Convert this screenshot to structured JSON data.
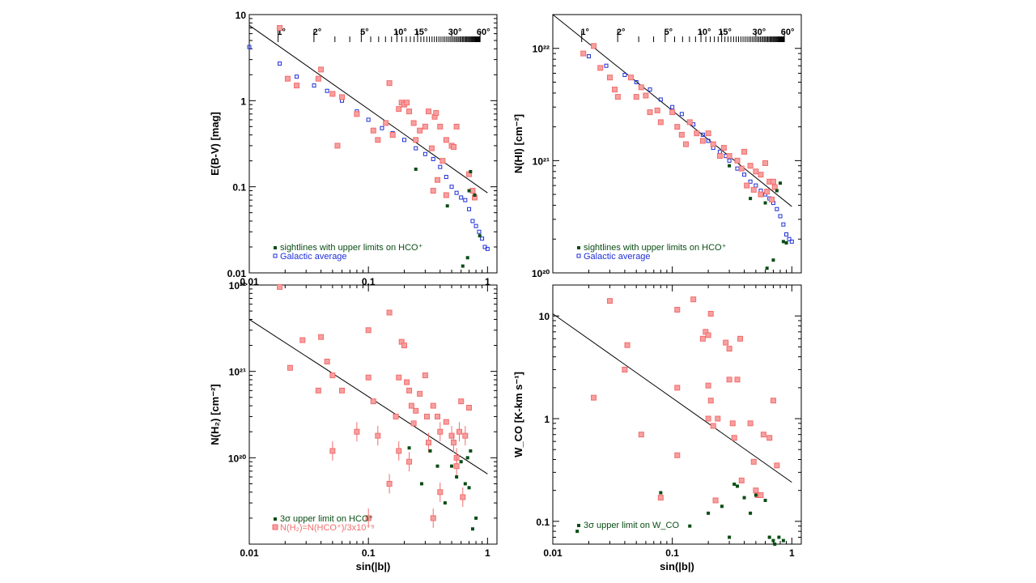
{
  "x_axis_label": "sin(|b|)",
  "colors": {
    "measured": "#f26d6d",
    "measured_fill": "#f7a0a0",
    "upper_limit": "#0a4d14",
    "galactic": "#1f2fd8",
    "fit": "#000000"
  },
  "chart_data": [
    {
      "id": "ebv",
      "type": "scatter",
      "ylabel": "E(B-V) [mag]",
      "xscale": "log",
      "yscale": "log",
      "xlim": [
        0.01,
        1.2
      ],
      "ylim": [
        0.01,
        10
      ],
      "x_ticks": [
        {
          "v": 0.01,
          "label": "0.01"
        },
        {
          "v": 0.1,
          "label": "0.1"
        },
        {
          "v": 1,
          "label": "1"
        }
      ],
      "y_ticks": [
        {
          "v": 0.01,
          "label": "0.01"
        },
        {
          "v": 0.1,
          "label": "0.1"
        },
        {
          "v": 1,
          "label": "1"
        },
        {
          "v": 10,
          "label": "10"
        }
      ],
      "top_axis_labels": [
        "1°",
        "2°",
        "5°",
        "10°",
        "15°",
        "30°",
        "60°"
      ],
      "top_axis_deg": [
        1,
        2,
        5,
        10,
        15,
        30,
        60
      ],
      "fit": {
        "x": [
          0.01,
          1
        ],
        "y": [
          7.5,
          0.085
        ]
      },
      "legend": [
        "sightlines with upper limits on HCO⁺",
        "Galactic average"
      ],
      "measured": [
        [
          0.018,
          7.0
        ],
        [
          0.021,
          1.8
        ],
        [
          0.025,
          1.5
        ],
        [
          0.038,
          1.8
        ],
        [
          0.04,
          2.3
        ],
        [
          0.05,
          1.2
        ],
        [
          0.055,
          0.3
        ],
        [
          0.06,
          1.1
        ],
        [
          0.08,
          0.7
        ],
        [
          0.11,
          0.45
        ],
        [
          0.12,
          0.35
        ],
        [
          0.14,
          0.55
        ],
        [
          0.15,
          1.6
        ],
        [
          0.16,
          0.4
        ],
        [
          0.18,
          0.8
        ],
        [
          0.19,
          0.95
        ],
        [
          0.2,
          0.9
        ],
        [
          0.21,
          0.95
        ],
        [
          0.22,
          0.75
        ],
        [
          0.24,
          0.55
        ],
        [
          0.25,
          0.35
        ],
        [
          0.27,
          0.45
        ],
        [
          0.3,
          0.5
        ],
        [
          0.32,
          0.75
        ],
        [
          0.34,
          0.28
        ],
        [
          0.36,
          0.65
        ],
        [
          0.37,
          0.72
        ],
        [
          0.4,
          0.5
        ],
        [
          0.42,
          0.2
        ],
        [
          0.45,
          0.35
        ],
        [
          0.5,
          0.3
        ],
        [
          0.52,
          0.29
        ],
        [
          0.55,
          0.5
        ],
        [
          0.35,
          0.09
        ],
        [
          0.38,
          0.12
        ],
        [
          0.45,
          0.08
        ],
        [
          0.7,
          0.14
        ],
        [
          0.75,
          0.09
        ],
        [
          0.78,
          0.075
        ]
      ],
      "upper_limits": [
        [
          0.25,
          0.16
        ],
        [
          0.46,
          0.06
        ],
        [
          0.62,
          0.012
        ],
        [
          0.68,
          0.015
        ],
        [
          0.7,
          0.09
        ],
        [
          0.78,
          0.08
        ],
        [
          0.72,
          0.15
        ],
        [
          0.86,
          0.027
        ]
      ],
      "galactic": [
        [
          0.01,
          4.2
        ],
        [
          0.018,
          2.7
        ],
        [
          0.025,
          1.9
        ],
        [
          0.035,
          1.5
        ],
        [
          0.045,
          1.3
        ],
        [
          0.06,
          1.0
        ],
        [
          0.08,
          0.75
        ],
        [
          0.1,
          0.6
        ],
        [
          0.13,
          0.48
        ],
        [
          0.16,
          0.42
        ],
        [
          0.2,
          0.35
        ],
        [
          0.25,
          0.28
        ],
        [
          0.3,
          0.24
        ],
        [
          0.35,
          0.21
        ],
        [
          0.4,
          0.17
        ],
        [
          0.45,
          0.13
        ],
        [
          0.5,
          0.1
        ],
        [
          0.55,
          0.085
        ],
        [
          0.6,
          0.075
        ],
        [
          0.65,
          0.07
        ],
        [
          0.7,
          0.055
        ],
        [
          0.75,
          0.04
        ],
        [
          0.8,
          0.035
        ],
        [
          0.85,
          0.03
        ],
        [
          0.9,
          0.025
        ],
        [
          0.95,
          0.02
        ],
        [
          1.0,
          0.019
        ]
      ]
    },
    {
      "id": "nhi",
      "type": "scatter",
      "ylabel": "N(HI) [cm⁻²]",
      "xscale": "log",
      "yscale": "log",
      "xlim": [
        0.01,
        1.2
      ],
      "ylim": [
        1e+20,
        2e+22
      ],
      "x_ticks": [],
      "y_ticks": [
        {
          "v": 1e+20,
          "label": "10²⁰"
        },
        {
          "v": 1e+21,
          "label": "10²¹"
        },
        {
          "v": 1e+22,
          "label": "10²²"
        }
      ],
      "top_axis_labels": [
        "1°",
        "2°",
        "5°",
        "10°",
        "15°",
        "30°",
        "60°"
      ],
      "top_axis_deg": [
        1,
        2,
        5,
        10,
        15,
        30,
        60
      ],
      "fit": {
        "x": [
          0.01,
          1
        ],
        "y": [
          2e+22,
          3.9e+20
        ]
      },
      "legend": [
        "sightlines with upper limits on HCO⁺",
        "Galactic average"
      ],
      "measured": [
        [
          0.018,
          9e+21
        ],
        [
          0.022,
          1.05e+22
        ],
        [
          0.025,
          6.7e+21
        ],
        [
          0.03,
          5.5e+21
        ],
        [
          0.033,
          4.3e+21
        ],
        [
          0.035,
          3.7e+21
        ],
        [
          0.045,
          5.5e+21
        ],
        [
          0.05,
          3.7e+21
        ],
        [
          0.055,
          4.5e+21
        ],
        [
          0.06,
          3.8e+21
        ],
        [
          0.065,
          2.7e+21
        ],
        [
          0.075,
          2.8e+21
        ],
        [
          0.08,
          2.2e+21
        ],
        [
          0.1,
          2.7e+21
        ],
        [
          0.11,
          2e+21
        ],
        [
          0.12,
          1.7e+21
        ],
        [
          0.13,
          1.4e+21
        ],
        [
          0.14,
          2.2e+21
        ],
        [
          0.16,
          1.75e+21
        ],
        [
          0.18,
          1.5e+21
        ],
        [
          0.2,
          1.75e+21
        ],
        [
          0.22,
          1.4e+21
        ],
        [
          0.25,
          1.1e+21
        ],
        [
          0.27,
          1.3e+21
        ],
        [
          0.3,
          1.1e+21
        ],
        [
          0.35,
          1e+21
        ],
        [
          0.38,
          8.5e+20
        ],
        [
          0.4,
          1.2e+21
        ],
        [
          0.45,
          9e+20
        ],
        [
          0.5,
          8e+20
        ],
        [
          0.55,
          7.5e+20
        ],
        [
          0.6,
          9.5e+20
        ],
        [
          0.65,
          6.5e+20
        ],
        [
          0.7,
          6.5e+20
        ],
        [
          0.42,
          6e+20
        ],
        [
          0.48,
          5.5e+20
        ],
        [
          0.55,
          5e+20
        ],
        [
          0.62,
          5.3e+20
        ],
        [
          0.68,
          4.5e+20
        ],
        [
          0.72,
          5.8e+20
        ]
      ],
      "upper_limits": [
        [
          0.3,
          9e+20
        ],
        [
          0.45,
          4.6e+20
        ],
        [
          0.6,
          4.2e+20
        ],
        [
          0.62,
          1.1e+20
        ],
        [
          0.7,
          1.3e+20
        ],
        [
          0.75,
          5.4e+20
        ],
        [
          0.8,
          6.3e+20
        ],
        [
          0.85,
          1.9e+20
        ],
        [
          0.9,
          1.85e+20
        ]
      ],
      "galactic": [
        [
          0.02,
          8.5e+21
        ],
        [
          0.028,
          7e+21
        ],
        [
          0.04,
          5.8e+21
        ],
        [
          0.05,
          5e+21
        ],
        [
          0.065,
          4.3e+21
        ],
        [
          0.08,
          3.5e+21
        ],
        [
          0.1,
          3e+21
        ],
        [
          0.12,
          2.6e+21
        ],
        [
          0.15,
          2.1e+21
        ],
        [
          0.18,
          1.7e+21
        ],
        [
          0.2,
          1.5e+21
        ],
        [
          0.22,
          1.3e+21
        ],
        [
          0.25,
          1.2e+21
        ],
        [
          0.28,
          1.1e+21
        ],
        [
          0.3,
          1e+21
        ],
        [
          0.35,
          8.5e+20
        ],
        [
          0.4,
          7.5e+20
        ],
        [
          0.45,
          6.5e+20
        ],
        [
          0.5,
          6e+20
        ],
        [
          0.55,
          5.4e+20
        ],
        [
          0.6,
          5e+20
        ],
        [
          0.65,
          4.6e+20
        ],
        [
          0.7,
          4.2e+20
        ],
        [
          0.75,
          3.7e+20
        ],
        [
          0.8,
          3.2e+20
        ],
        [
          0.85,
          2.7e+20
        ],
        [
          0.9,
          2.2e+20
        ],
        [
          0.95,
          2e+20
        ],
        [
          1.0,
          1.9e+20
        ]
      ]
    },
    {
      "id": "nh2",
      "type": "scatter",
      "ylabel": "N(H₂) [cm⁻²]",
      "xscale": "log",
      "yscale": "log",
      "xlim": [
        0.01,
        1.2
      ],
      "ylim": [
        1e+19,
        1e+22
      ],
      "x_ticks": [
        {
          "v": 0.01,
          "label": "0.01"
        },
        {
          "v": 0.1,
          "label": "0.1"
        },
        {
          "v": 1,
          "label": "1"
        }
      ],
      "y_ticks": [
        {
          "v": 1e+20,
          "label": "10²⁰"
        },
        {
          "v": 1e+21,
          "label": "10²¹"
        },
        {
          "v": 1e+22,
          "label": "10²²"
        }
      ],
      "fit": {
        "x": [
          0.01,
          1
        ],
        "y": [
          4e+21,
          6.5e+19
        ]
      },
      "legend": [
        "3σ upper limit on HCO⁺",
        "N(H₂)=N(HCO⁺)/3x10⁻⁹"
      ],
      "measured": [
        [
          0.018,
          9.5e+21
        ],
        [
          0.022,
          1.1e+21
        ],
        [
          0.028,
          2.3e+21
        ],
        [
          0.04,
          2.5e+21
        ],
        [
          0.045,
          1.3e+21
        ],
        [
          0.05,
          9e+20
        ],
        [
          0.038,
          6e+20
        ],
        [
          0.06,
          6e+20
        ],
        [
          0.05,
          1.2e+20
        ],
        [
          0.08,
          2e+20
        ],
        [
          0.1,
          3e+21
        ],
        [
          0.1,
          8.5e+20
        ],
        [
          0.11,
          4.5e+20
        ],
        [
          0.12,
          1.8e+20
        ],
        [
          0.15,
          4.8e+21
        ],
        [
          0.17,
          3e+20
        ],
        [
          0.18,
          8.5e+20
        ],
        [
          0.19,
          2.2e+21
        ],
        [
          0.2,
          2e+21
        ],
        [
          0.21,
          7.5e+20
        ],
        [
          0.22,
          6e+20
        ],
        [
          0.23,
          4e+20
        ],
        [
          0.24,
          2.5e+20
        ],
        [
          0.25,
          3.5e+20
        ],
        [
          0.27,
          5.5e+20
        ],
        [
          0.3,
          9e+20
        ],
        [
          0.31,
          3e+20
        ],
        [
          0.32,
          1.5e+20
        ],
        [
          0.35,
          4e+20
        ],
        [
          0.38,
          3e+20
        ],
        [
          0.4,
          2e+20
        ],
        [
          0.45,
          2.6e+20
        ],
        [
          0.5,
          1.8e+20
        ],
        [
          0.52,
          1.5e+20
        ],
        [
          0.55,
          1e+20
        ],
        [
          0.58,
          2e+20
        ],
        [
          0.6,
          4.5e+20
        ],
        [
          0.65,
          1.8e+20
        ],
        [
          0.7,
          3.8e+20
        ],
        [
          0.15,
          5e+19
        ],
        [
          0.1,
          2e+19
        ],
        [
          0.35,
          2e+19
        ],
        [
          0.4,
          4e+19
        ],
        [
          0.55,
          8e+19
        ],
        [
          0.62,
          3.5e+19
        ],
        [
          0.22,
          9e+19
        ],
        [
          0.18,
          1.2e+20
        ]
      ],
      "upper_limits": [
        [
          0.22,
          1.3e+20
        ],
        [
          0.28,
          5e+19
        ],
        [
          0.33,
          1.2e+20
        ],
        [
          0.38,
          8e+19
        ],
        [
          0.44,
          3e+19
        ],
        [
          0.5,
          8e+19
        ],
        [
          0.55,
          6e+19
        ],
        [
          0.6,
          9e+19
        ],
        [
          0.65,
          5e+19
        ],
        [
          0.7,
          4.5e+19
        ],
        [
          0.72,
          1.2e+20
        ],
        [
          0.68,
          1e+20
        ],
        [
          0.75,
          1.5e+19
        ],
        [
          0.8,
          2e+19
        ]
      ],
      "galactic": []
    },
    {
      "id": "wco",
      "type": "scatter",
      "ylabel": "W_CO [K-km s⁻¹]",
      "xscale": "log",
      "yscale": "log",
      "xlim": [
        0.01,
        1.2
      ],
      "ylim": [
        0.06,
        20
      ],
      "x_ticks": [
        {
          "v": 0.01,
          "label": "0.01"
        },
        {
          "v": 0.1,
          "label": "0.1"
        },
        {
          "v": 1,
          "label": "1"
        }
      ],
      "y_ticks": [
        {
          "v": 0.1,
          "label": "0.1"
        },
        {
          "v": 1,
          "label": "1"
        },
        {
          "v": 10,
          "label": "10"
        }
      ],
      "fit": {
        "x": [
          0.01,
          1
        ],
        "y": [
          10.5,
          0.24
        ]
      },
      "legend": [
        "3σ upper limit on W_CO"
      ],
      "measured": [
        [
          0.022,
          1.6
        ],
        [
          0.03,
          14.0
        ],
        [
          0.04,
          3.0
        ],
        [
          0.042,
          5.2
        ],
        [
          0.055,
          0.7
        ],
        [
          0.08,
          0.17
        ],
        [
          0.11,
          11.5
        ],
        [
          0.11,
          2.0
        ],
        [
          0.11,
          0.44
        ],
        [
          0.15,
          14.5
        ],
        [
          0.18,
          6.0
        ],
        [
          0.19,
          7.0
        ],
        [
          0.2,
          6.5
        ],
        [
          0.2,
          2.1
        ],
        [
          0.2,
          1.0
        ],
        [
          0.21,
          10.5
        ],
        [
          0.21,
          1.5
        ],
        [
          0.22,
          0.85
        ],
        [
          0.23,
          0.16
        ],
        [
          0.24,
          1.0
        ],
        [
          0.28,
          5.5
        ],
        [
          0.3,
          4.8
        ],
        [
          0.3,
          2.4
        ],
        [
          0.32,
          0.9
        ],
        [
          0.33,
          0.65
        ],
        [
          0.35,
          2.4
        ],
        [
          0.37,
          6.0
        ],
        [
          0.38,
          0.25
        ],
        [
          0.45,
          0.9
        ],
        [
          0.48,
          0.38
        ],
        [
          0.5,
          0.2
        ],
        [
          0.52,
          0.18
        ],
        [
          0.55,
          0.18
        ],
        [
          0.58,
          0.7
        ],
        [
          0.65,
          0.65
        ],
        [
          0.7,
          1.5
        ],
        [
          0.75,
          0.35
        ]
      ],
      "upper_limits": [
        [
          0.016,
          0.08
        ],
        [
          0.08,
          0.19
        ],
        [
          0.14,
          0.09
        ],
        [
          0.2,
          0.12
        ],
        [
          0.26,
          0.14
        ],
        [
          0.33,
          0.23
        ],
        [
          0.35,
          0.22
        ],
        [
          0.4,
          0.17
        ],
        [
          0.45,
          0.12
        ],
        [
          0.5,
          0.18
        ],
        [
          0.6,
          0.16
        ],
        [
          0.65,
          0.07
        ],
        [
          0.7,
          0.065
        ],
        [
          0.72,
          0.06
        ],
        [
          0.78,
          0.07
        ],
        [
          0.85,
          0.065
        ],
        [
          0.3,
          0.07
        ]
      ],
      "galactic": []
    }
  ]
}
